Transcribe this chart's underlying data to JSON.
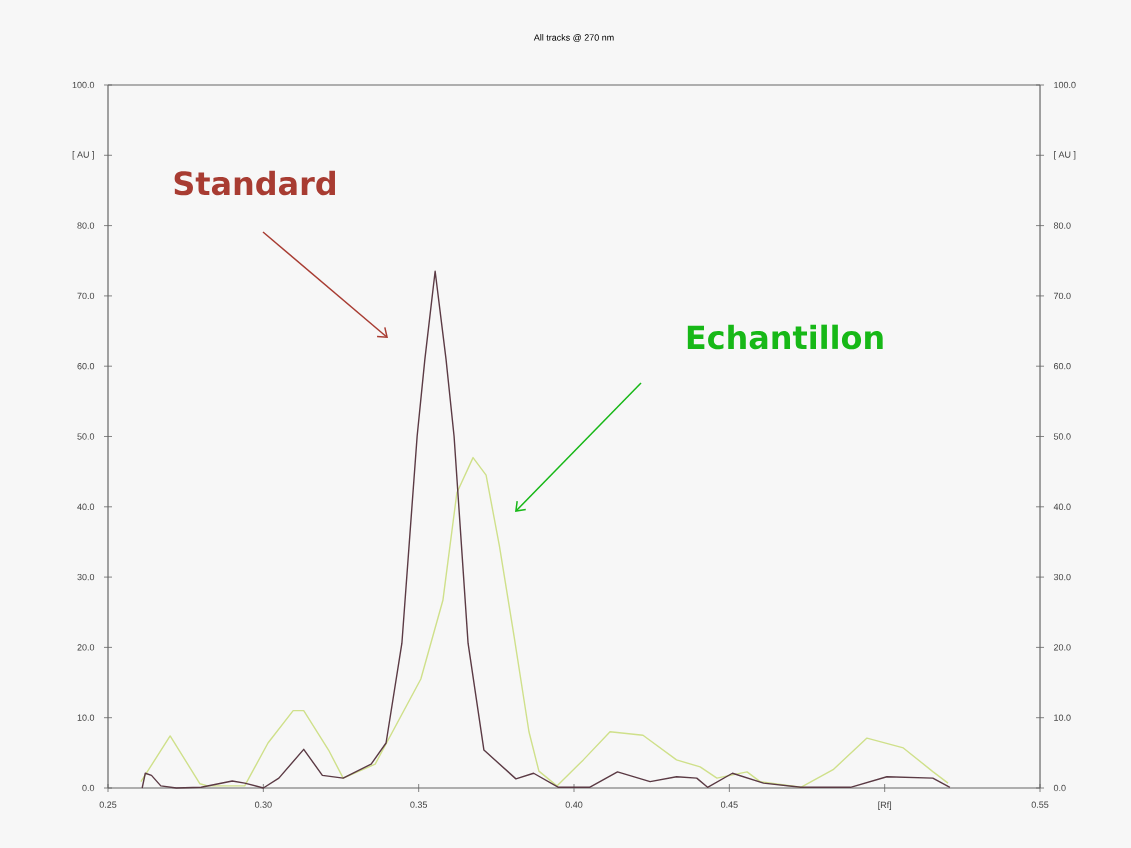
{
  "chart_data": {
    "type": "line",
    "title": "All tracks @ 270 nm",
    "xlim": [
      0.25,
      0.55
    ],
    "xticks": [
      {
        "value": 0.25,
        "label": "0.25"
      },
      {
        "value": 0.3,
        "label": "0.30"
      },
      {
        "value": 0.35,
        "label": "0.35"
      },
      {
        "value": 0.4,
        "label": "0.40"
      },
      {
        "value": 0.45,
        "label": "0.45"
      },
      {
        "value": 0.5,
        "label": "[Rf]"
      },
      {
        "value": 0.55,
        "label": "0.55"
      }
    ],
    "ylim": [
      0,
      100
    ],
    "yticks": [
      {
        "value": 0,
        "label": "0.0"
      },
      {
        "value": 10,
        "label": "10.0"
      },
      {
        "value": 20,
        "label": "20.0"
      },
      {
        "value": 30,
        "label": "30.0"
      },
      {
        "value": 40,
        "label": "40.0"
      },
      {
        "value": 50,
        "label": "50.0"
      },
      {
        "value": 60,
        "label": "60.0"
      },
      {
        "value": 70,
        "label": "70.0"
      },
      {
        "value": 80,
        "label": "80.0"
      },
      {
        "value": 90,
        "label": "[ AU ]"
      },
      {
        "value": 100,
        "label": "100.0"
      }
    ],
    "y2lim": [
      0,
      100
    ],
    "y2ticks": [
      {
        "value": 0,
        "label": "0.0"
      },
      {
        "value": 10,
        "label": "10.0"
      },
      {
        "value": 20,
        "label": "20.0"
      },
      {
        "value": 30,
        "label": "30.0"
      },
      {
        "value": 40,
        "label": "40.0"
      },
      {
        "value": 50,
        "label": "50.0"
      },
      {
        "value": 60,
        "label": "60.0"
      },
      {
        "value": 70,
        "label": "70.0"
      },
      {
        "value": 80,
        "label": "80.0"
      },
      {
        "value": 90,
        "label": "[ AU ]"
      },
      {
        "value": 100,
        "label": "100.0"
      }
    ],
    "grid": false,
    "marker": "none",
    "line_style": "solid",
    "series": [
      {
        "color": "#cfe08a",
        "x": [
          0.2606,
          0.27,
          0.2796,
          0.282,
          0.294,
          0.3015,
          0.3096,
          0.313,
          0.321,
          0.3257,
          0.336,
          0.3507,
          0.3578,
          0.3623,
          0.3675,
          0.3717,
          0.376,
          0.3807,
          0.3855,
          0.3887,
          0.3945,
          0.403,
          0.4116,
          0.4222,
          0.433,
          0.4406,
          0.446,
          0.4557,
          0.4599,
          0.473,
          0.4834,
          0.4943,
          0.506,
          0.5156,
          0.5204
        ],
        "values": [
          0.9,
          7.4,
          0.6,
          0.3,
          0.3,
          6.4,
          11,
          11,
          5.4,
          1.4,
          3.4,
          15.5,
          26.7,
          42,
          47,
          44.5,
          34.4,
          21.6,
          8,
          2.4,
          0.3,
          4,
          8,
          7.5,
          4,
          3,
          1.4,
          2.3,
          0.9,
          0.1,
          2.6,
          7.1,
          5.7,
          2.3,
          0.7
        ]
      },
      {
        "color": "#5b3a44",
        "x": [
          0.261,
          0.262,
          0.264,
          0.267,
          0.272,
          0.28,
          0.29,
          0.294,
          0.3,
          0.305,
          0.313,
          0.319,
          0.3257,
          0.3347,
          0.3395,
          0.3446,
          0.3495,
          0.352,
          0.3553,
          0.3588,
          0.3614,
          0.3659,
          0.371,
          0.3813,
          0.387,
          0.395,
          0.405,
          0.414,
          0.4245,
          0.433,
          0.4395,
          0.443,
          0.451,
          0.461,
          0.473,
          0.489,
          0.5007,
          0.5155,
          0.521
        ],
        "values": [
          0,
          2.1,
          1.8,
          0.3,
          0,
          0.1,
          1.0,
          0.7,
          0,
          1.4,
          5.5,
          1.8,
          1.4,
          3.4,
          6.4,
          20.6,
          50,
          61,
          73.5,
          61,
          50,
          20.6,
          5.4,
          1.3,
          2.1,
          0.1,
          0.1,
          2.3,
          0.9,
          1.6,
          1.4,
          0.1,
          2.1,
          0.7,
          0.1,
          0.1,
          1.6,
          1.4,
          0.1
        ]
      }
    ],
    "annotations": [
      "Standard",
      "Echantillon"
    ]
  }
}
